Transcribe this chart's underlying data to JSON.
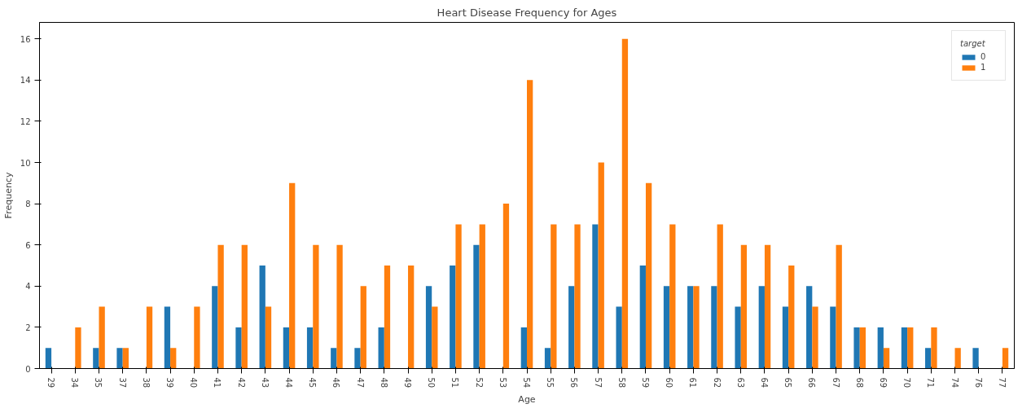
{
  "chart_data": {
    "type": "bar",
    "title": "Heart Disease Frequency for Ages",
    "xlabel": "Age",
    "ylabel": "Frequency",
    "legend_title": "target",
    "categories": [
      "29",
      "34",
      "35",
      "37",
      "38",
      "39",
      "40",
      "41",
      "42",
      "43",
      "44",
      "45",
      "46",
      "47",
      "48",
      "49",
      "50",
      "51",
      "52",
      "53",
      "54",
      "55",
      "56",
      "57",
      "58",
      "59",
      "60",
      "61",
      "62",
      "63",
      "64",
      "65",
      "66",
      "67",
      "68",
      "69",
      "70",
      "71",
      "74",
      "76",
      "77"
    ],
    "series": [
      {
        "name": "0",
        "color": "#1f77b4",
        "values": [
          1,
          0,
          1,
          1,
          0,
          3,
          0,
          4,
          2,
          5,
          2,
          2,
          1,
          1,
          2,
          0,
          4,
          5,
          6,
          0,
          2,
          1,
          4,
          7,
          3,
          5,
          4,
          4,
          4,
          3,
          4,
          3,
          4,
          3,
          2,
          2,
          2,
          1,
          0,
          1,
          0
        ]
      },
      {
        "name": "1",
        "color": "#ff7f0e",
        "values": [
          0,
          2,
          3,
          1,
          3,
          1,
          3,
          6,
          6,
          3,
          9,
          6,
          6,
          4,
          5,
          5,
          3,
          7,
          7,
          8,
          14,
          7,
          7,
          10,
          16,
          9,
          7,
          4,
          7,
          6,
          6,
          5,
          3,
          6,
          2,
          1,
          2,
          2,
          1,
          0,
          1
        ]
      }
    ],
    "ylim": [
      0,
      16.8
    ],
    "yticks": [
      0,
      2,
      4,
      6,
      8,
      10,
      12,
      14,
      16
    ],
    "grid": false,
    "legend": "top right"
  }
}
